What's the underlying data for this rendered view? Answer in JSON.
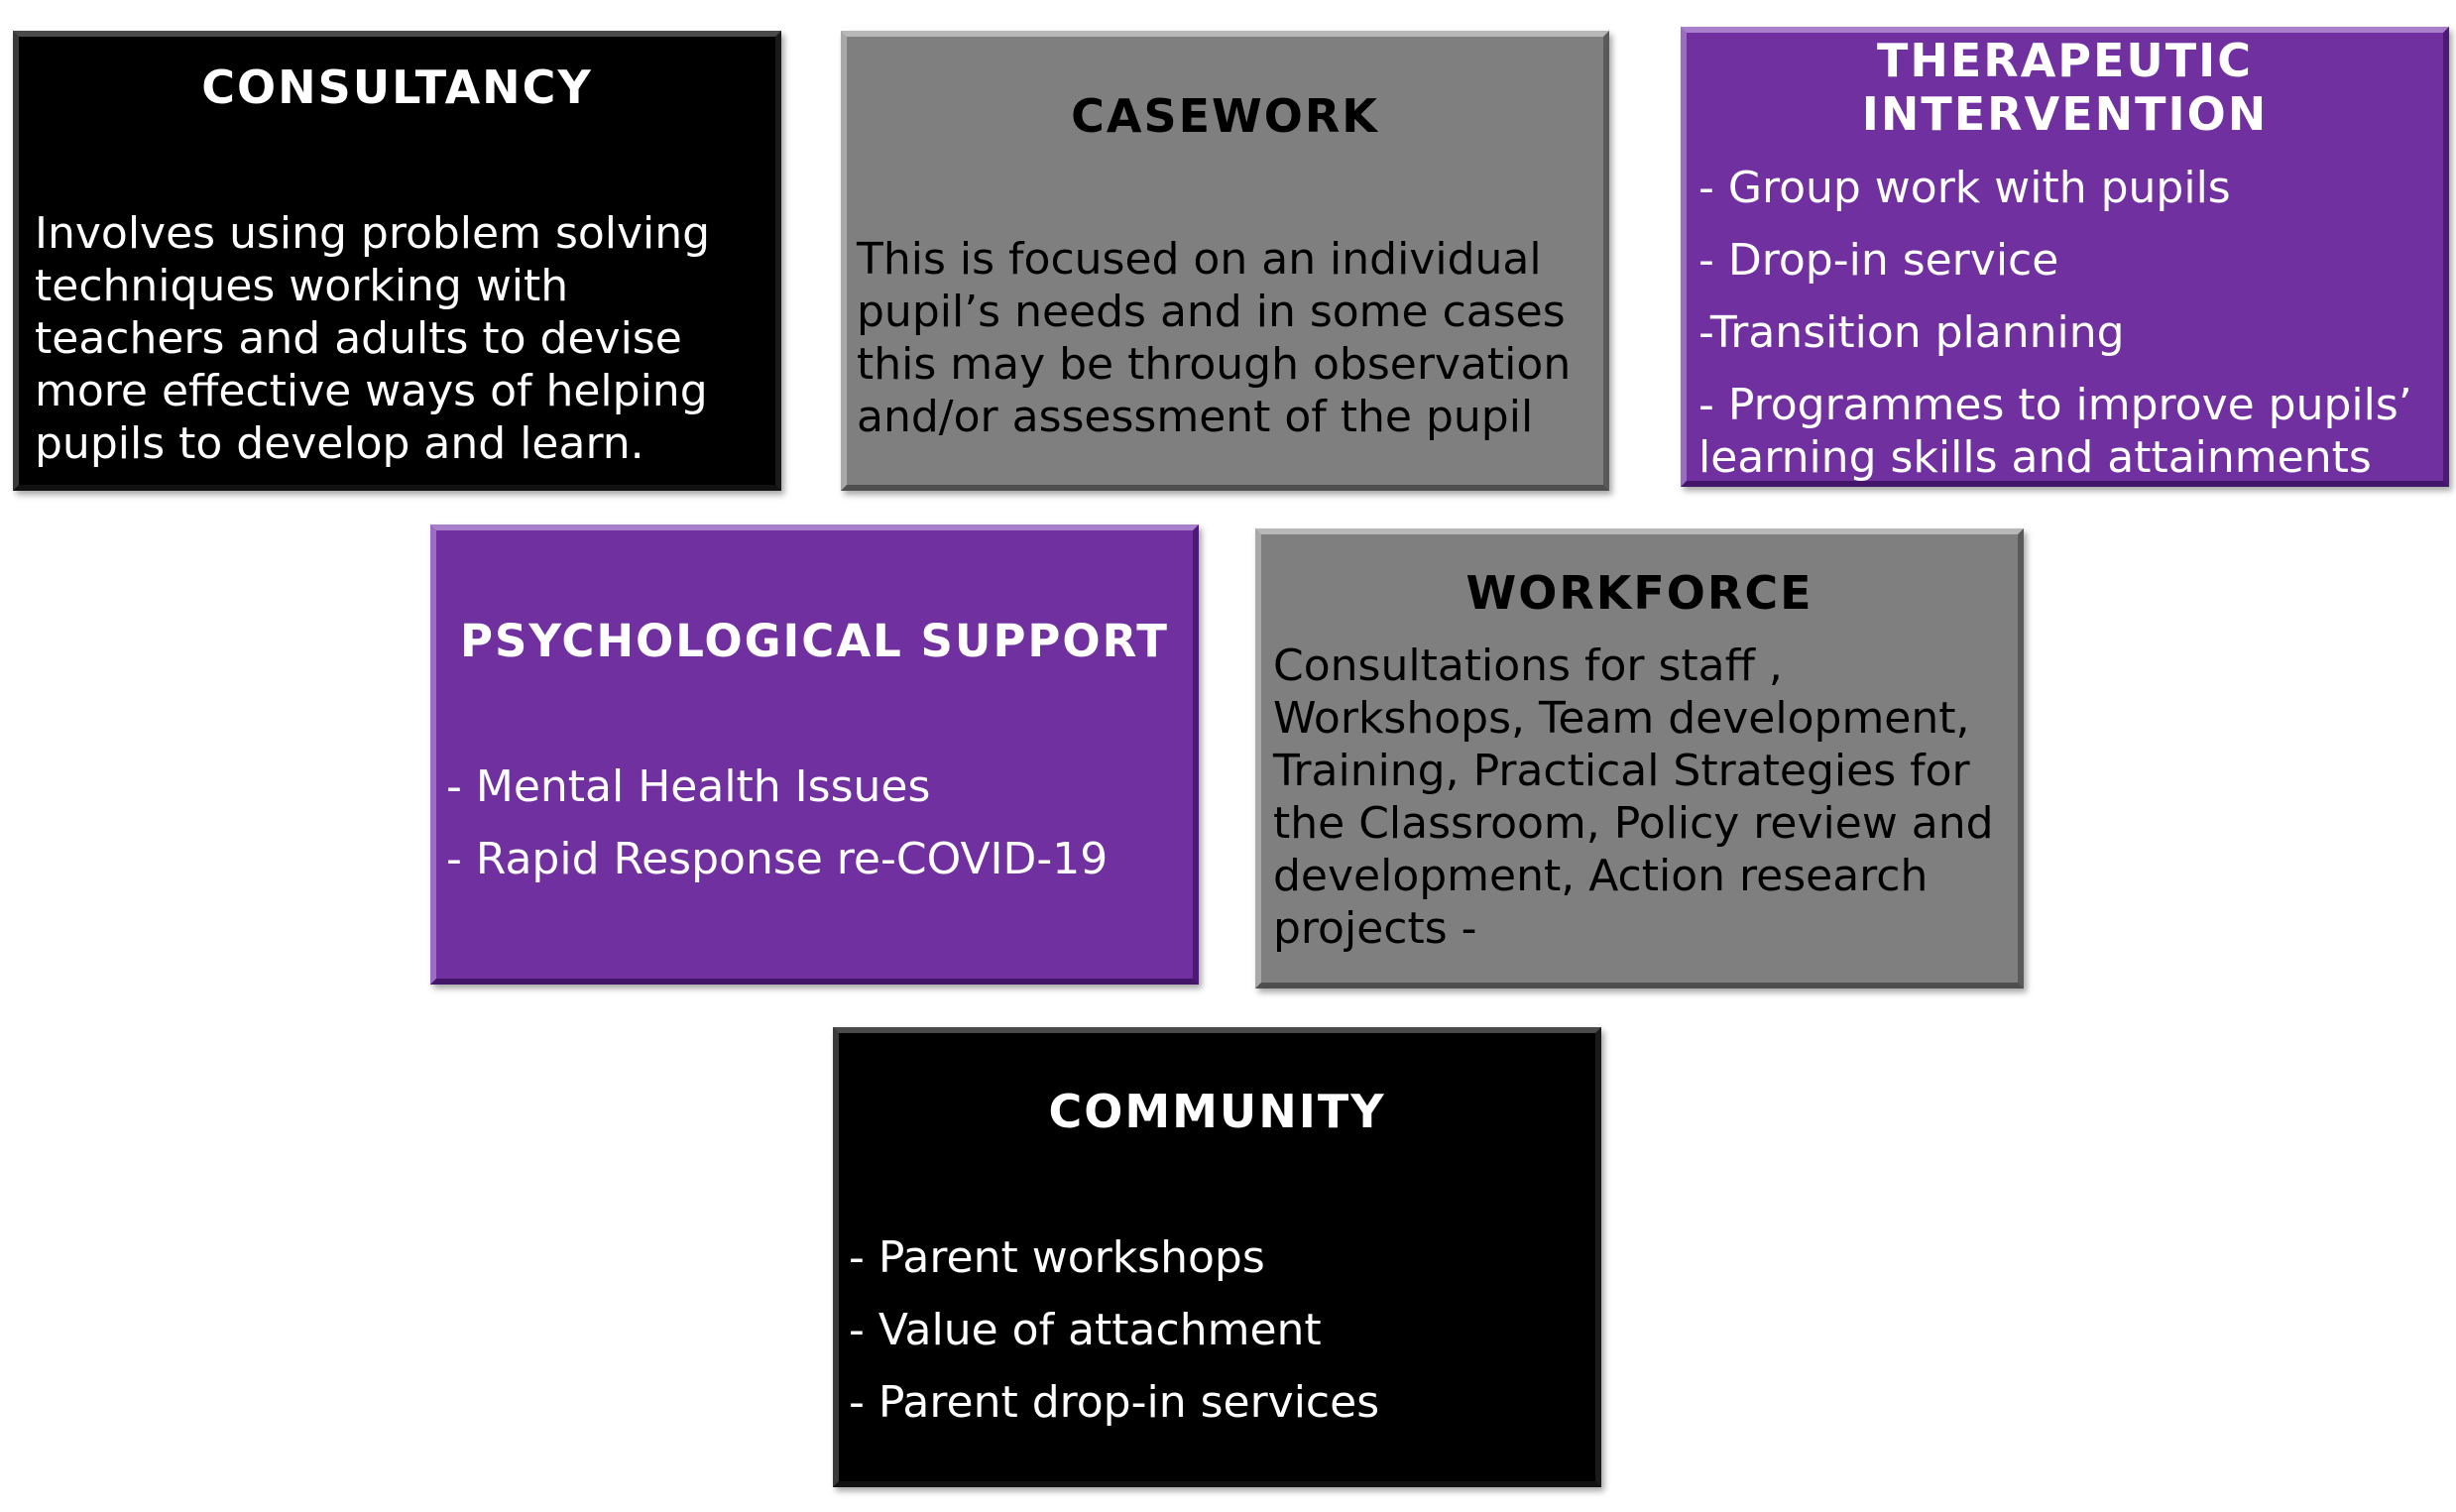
{
  "colors": {
    "black_box": "#000000",
    "gray_box": "#7f7f7f",
    "purple_box": "#7030a0",
    "white_text": "#ffffff",
    "dark_text": "#000000"
  },
  "consultancy": {
    "title": "CONSULTANCY",
    "text": "Involves using problem solving techniques working with teachers and adults to devise more effective ways of helping pupils to develop and learn."
  },
  "casework": {
    "title": "CASEWORK",
    "text": "This is focused on an individual pupil’s needs and in some cases this may be through observation and/or assessment of the pupil"
  },
  "therapeutic": {
    "title_line1": "THERAPEUTIC",
    "title_line2": "INTERVENTION",
    "items": [
      "- Group work with pupils",
      "- Drop-in service",
      "-Transition planning",
      "- Programmes to improve pupils’ learning skills and attainments"
    ]
  },
  "psychological": {
    "title": "PSYCHOLOGICAL SUPPORT",
    "items": [
      "- Mental Health Issues",
      "- Rapid Response re-COVID-19"
    ]
  },
  "workforce": {
    "title": "WORKFORCE",
    "text": "Consultations for staff , Workshops, Team development, Training, Practical Strategies for the Classroom,  Policy review and development, Action research projects -"
  },
  "community": {
    "title": "COMMUNITY",
    "items": [
      "- Parent workshops",
      "- Value of attachment",
      "- Parent drop-in services"
    ]
  }
}
